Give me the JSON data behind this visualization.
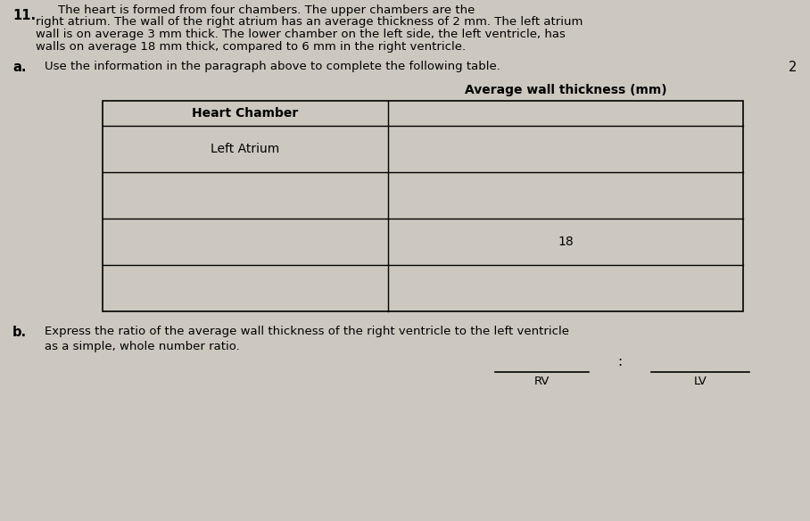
{
  "bg_color": "#ccc8c0",
  "question_number": "11.",
  "question_text_lines": [
    "The heart is formed from four chambers. The upper chambers are the",
    "right atrium. The wall of the right atrium has an average thickness of 2 mm. The left atrium",
    "wall is on average 3 mm thick. The lower chamber on the left side, the left ventricle, has",
    "walls on average 18 mm thick, compared to 6 mm in the right ventricle."
  ],
  "part_a_label": "a.",
  "part_a_text": "Use the information in the paragraph above to complete the following table.",
  "marks": "2",
  "col1_header": "Heart Chamber",
  "col2_header": "Average wall thickness (mm)",
  "table_rows": [
    [
      "Left Atrium",
      ""
    ],
    [
      "",
      ""
    ],
    [
      "",
      "18"
    ],
    [
      "",
      ""
    ],
    [
      "",
      ""
    ]
  ],
  "part_b_label": "b.",
  "part_b_text_line1": "Express the ratio of the average wall thickness of the right ventricle to the left ventricle",
  "part_b_text_line2": "as a simple, whole number ratio.",
  "rv_label": "RV",
  "lv_label": "LV",
  "colon": ":"
}
